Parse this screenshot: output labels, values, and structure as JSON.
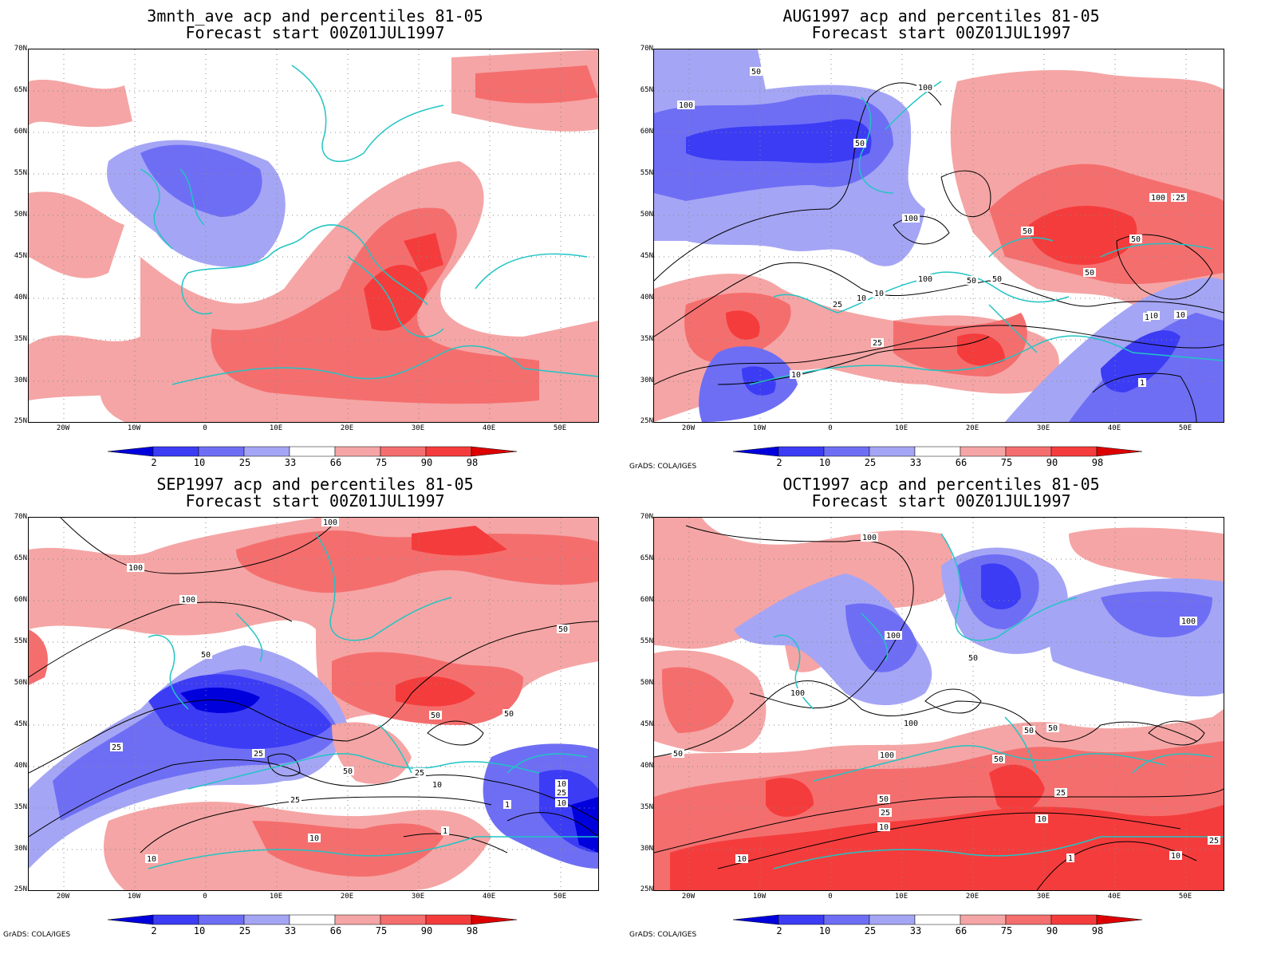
{
  "panels": [
    {
      "title_line1": "3mnth_ave acp and percentiles 81-05",
      "title_line2": "Forecast start 00Z01JUL1997",
      "credit": "",
      "contour_labels": []
    },
    {
      "title_line1": "AUG1997 acp and percentiles 81-05",
      "title_line2": "Forecast start 00Z01JUL1997",
      "credit": "GrADS: COLA/IGES",
      "contour_labels": [
        "50",
        "100",
        "100",
        "50",
        "100",
        "50",
        "25",
        "50",
        "100",
        "100",
        "50",
        "50",
        "50",
        "25",
        "10",
        "10",
        "25",
        "10",
        "1",
        "10",
        "1",
        "25",
        "10"
      ]
    },
    {
      "title_line1": "SEP1997 acp and percentiles 81-05",
      "title_line2": "Forecast start 00Z01JUL1997",
      "credit": "GrADS: COLA/IGES",
      "contour_labels": [
        "100",
        "100",
        "100",
        "50",
        "50",
        "50",
        "25",
        "25",
        "50",
        "50",
        "25",
        "10",
        "25",
        "10",
        "1",
        "1",
        "10",
        "10",
        "25",
        "10"
      ]
    },
    {
      "title_line1": "OCT1997 acp and percentiles 81-05",
      "title_line2": "Forecast start 00Z01JUL1997",
      "credit": "GrADS: COLA/IGES",
      "contour_labels": [
        "100",
        "100",
        "100",
        "50",
        "100",
        "100",
        "50",
        "50",
        "50",
        "50",
        "100",
        "25",
        "50",
        "25",
        "10",
        "10",
        "10",
        "1",
        "10",
        "25"
      ]
    }
  ],
  "lat_labels": [
    "70N",
    "65N",
    "60N",
    "55N",
    "50N",
    "45N",
    "40N",
    "35N",
    "30N",
    "25N"
  ],
  "lon_labels": [
    "20W",
    "10W",
    "0",
    "10E",
    "20E",
    "30E",
    "40E",
    "50E"
  ],
  "colorbar": {
    "labels": [
      "2",
      "10",
      "25",
      "33",
      "66",
      "75",
      "90",
      "98"
    ],
    "colors": [
      "#0000dd",
      "#3c3cf5",
      "#6e6ef5",
      "#a5a5f5",
      "#ffffff",
      "#f5a5a5",
      "#f56e6e",
      "#f53c3c",
      "#dd0000"
    ]
  },
  "map_colors": {
    "coast": "#22c4c4",
    "grid": "#888888",
    "contour": "#000000"
  }
}
